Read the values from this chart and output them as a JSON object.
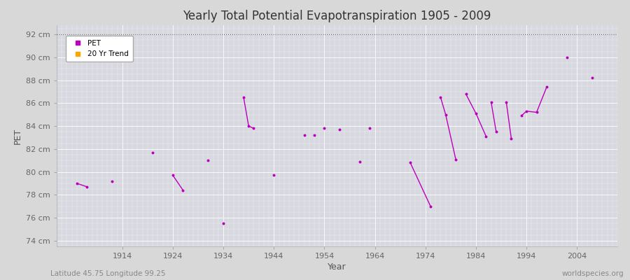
{
  "title": "Yearly Total Potential Evapotranspiration 1905 - 2009",
  "xlabel": "Year",
  "ylabel": "PET",
  "subtitle_left": "Latitude 45.75 Longitude 99.25",
  "subtitle_right": "worldspecies.org",
  "ylim": [
    73.5,
    92.8
  ],
  "yticks": [
    74,
    76,
    78,
    80,
    82,
    84,
    86,
    88,
    90,
    92
  ],
  "ytick_labels": [
    "74 cm",
    "76 cm",
    "78 cm",
    "80 cm",
    "82 cm",
    "84 cm",
    "86 cm",
    "88 cm",
    "90 cm",
    "92 cm"
  ],
  "xticks": [
    1914,
    1924,
    1934,
    1944,
    1954,
    1964,
    1974,
    1984,
    1994,
    2004
  ],
  "xlim": [
    1901,
    2012
  ],
  "background_color": "#d8d8d8",
  "plot_bg_color": "#d8d8e0",
  "grid_color": "#ffffff",
  "pet_color": "#bb00bb",
  "trend_color": "#ffa500",
  "top_dotted_color": "#555555",
  "pet_line_segments": [
    [
      [
        1905,
        79.0
      ],
      [
        1907,
        78.7
      ]
    ],
    [
      [
        1924,
        79.7
      ],
      [
        1926,
        78.4
      ]
    ],
    [
      [
        1938,
        86.5
      ],
      [
        1939,
        84.0
      ],
      [
        1940,
        83.8
      ]
    ],
    [
      [
        1971,
        80.8
      ],
      [
        1975,
        77.0
      ]
    ],
    [
      [
        1977,
        86.5
      ],
      [
        1978,
        85.0
      ],
      [
        1980,
        81.1
      ]
    ],
    [
      [
        1982,
        86.8
      ],
      [
        1984,
        85.1
      ],
      [
        1986,
        83.1
      ]
    ],
    [
      [
        1987,
        86.1
      ],
      [
        1988,
        83.5
      ]
    ],
    [
      [
        1990,
        86.1
      ],
      [
        1991,
        82.9
      ]
    ],
    [
      [
        1993,
        84.9
      ],
      [
        1994,
        85.3
      ],
      [
        1996,
        85.2
      ],
      [
        1998,
        87.4
      ]
    ]
  ],
  "pet_isolated_points": [
    [
      1912,
      79.2
    ],
    [
      1920,
      81.7
    ],
    [
      1931,
      81.0
    ],
    [
      1934,
      75.5
    ],
    [
      1944,
      79.7
    ],
    [
      1950,
      83.2
    ],
    [
      1952,
      83.2
    ],
    [
      1954,
      83.8
    ],
    [
      1957,
      83.7
    ],
    [
      1961,
      80.9
    ],
    [
      1963,
      83.8
    ],
    [
      2002,
      90.0
    ],
    [
      2007,
      88.2
    ]
  ]
}
